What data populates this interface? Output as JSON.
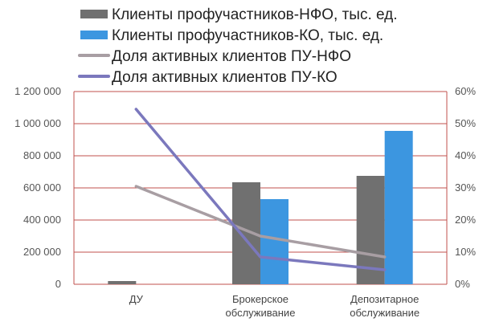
{
  "chart_data": {
    "type": "bar",
    "categories": [
      "ДУ",
      "Брокерское обслуживание",
      "Депозитарное обслуживание"
    ],
    "category_lines": [
      [
        "ДУ"
      ],
      [
        "Брокерское",
        "обслуживание"
      ],
      [
        "Депозитарное",
        "обслуживание"
      ]
    ],
    "bar_series": [
      {
        "name": "Клиенты профучастников-НФО, тыс. ед.",
        "color": "#707070",
        "values": [
          20000,
          635000,
          675000
        ]
      },
      {
        "name": "Клиенты профучастников-КО, тыс. ед.",
        "color": "#3c96e0",
        "values": [
          0,
          530000,
          955000
        ]
      }
    ],
    "line_series": [
      {
        "name": "Доля активных клиентов ПУ-НФО",
        "color": "#a89ea3",
        "values": [
          30.5,
          15,
          8.5
        ]
      },
      {
        "name": "Доля активных клиентов ПУ-КО",
        "color": "#7b78bd",
        "values": [
          54.5,
          8.5,
          4.5
        ]
      }
    ],
    "y_left": {
      "min": 0,
      "max": 1200000,
      "step": 200000,
      "tick_labels": [
        "0",
        "200 000",
        "400 000",
        "600 000",
        "800 000",
        "1 000 000",
        "1 200 000"
      ]
    },
    "y_right": {
      "min": 0,
      "max": 60,
      "step": 10,
      "tick_labels": [
        "0%",
        "10%",
        "20%",
        "30%",
        "40%",
        "50%",
        "60%"
      ]
    },
    "grid": true,
    "grid_color": "#c0504d",
    "legend_position": "top"
  }
}
